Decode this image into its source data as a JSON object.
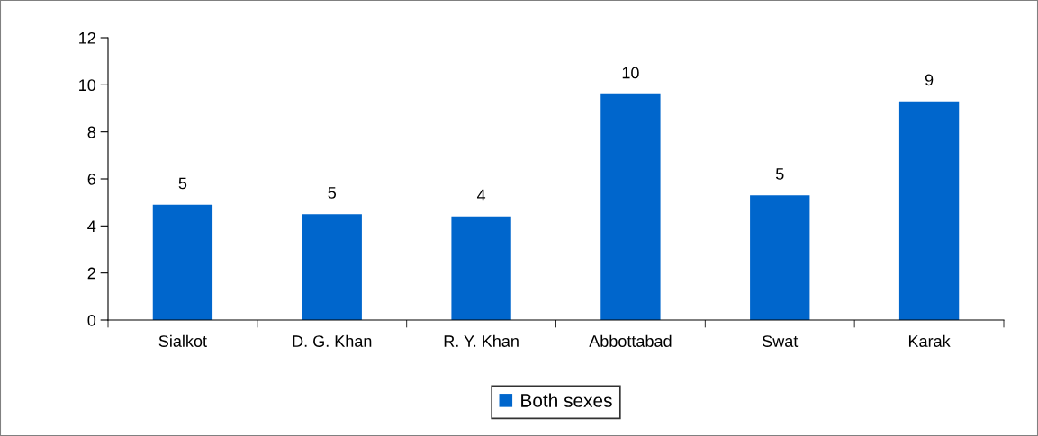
{
  "chart_data": {
    "type": "bar",
    "categories": [
      "Sialkot",
      "D. G. Khan",
      "R. Y. Khan",
      "Abbottabad",
      "Swat",
      "Karak"
    ],
    "series": [
      {
        "name": "Both sexes",
        "color": "#0066cc",
        "values": [
          4.9,
          4.5,
          4.4,
          9.6,
          5.3,
          9.3
        ],
        "value_labels": [
          "5",
          "5",
          "4",
          "10",
          "5",
          "9"
        ]
      }
    ],
    "ylim": [
      0,
      12
    ],
    "yticks": [
      0,
      2,
      4,
      6,
      8,
      10,
      12
    ],
    "grid": false,
    "legend": "bottom"
  }
}
